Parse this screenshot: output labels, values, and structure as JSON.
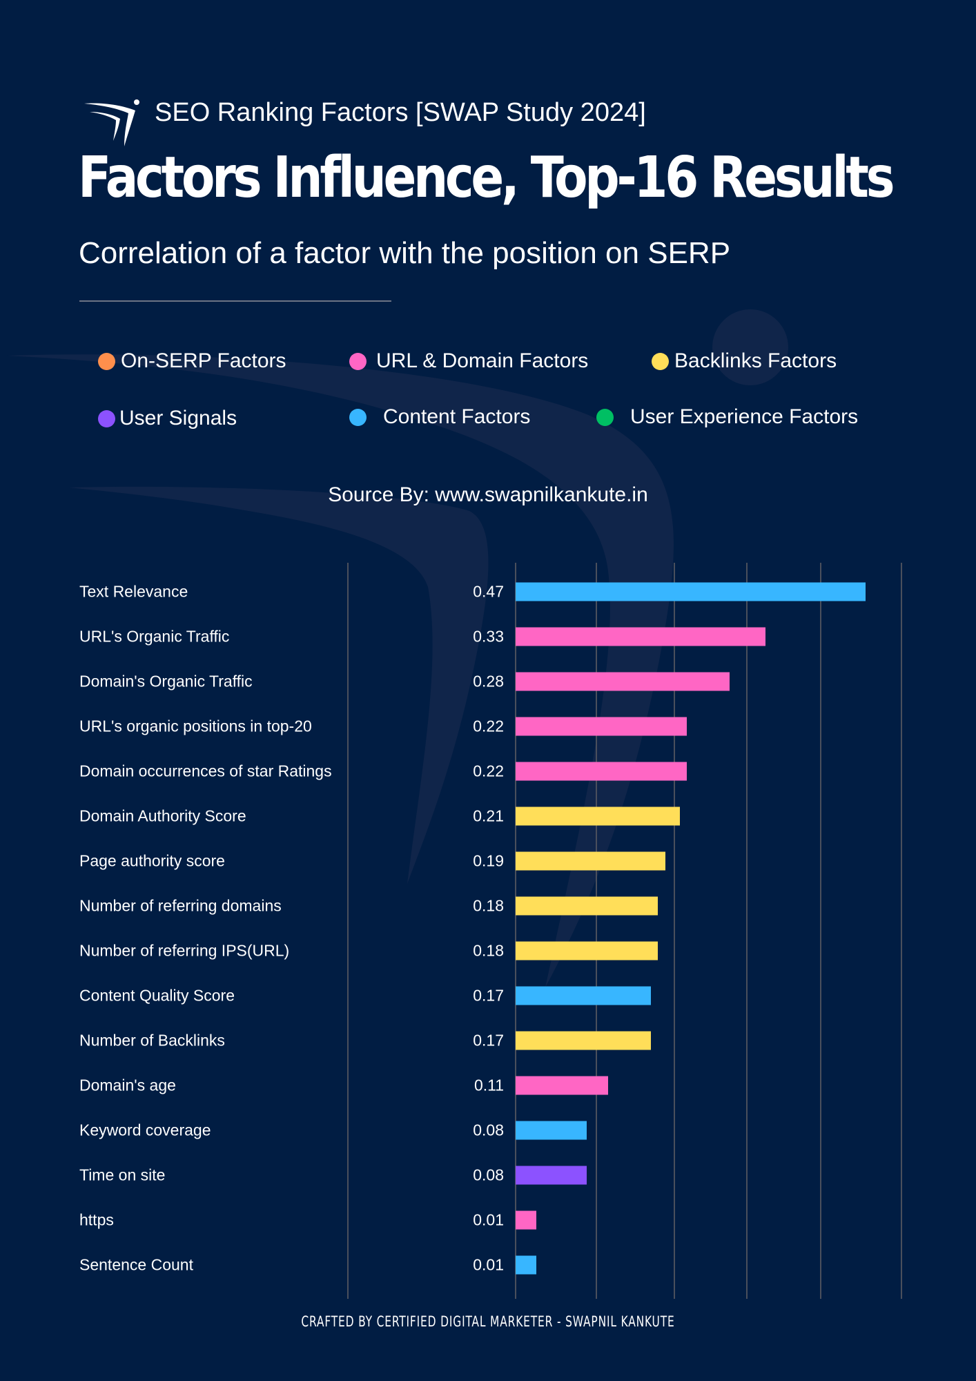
{
  "header": {
    "study_title": "SEO Ranking Factors [SWAP Study 2024]",
    "main_title": "Factors Influence, Top-16 Results",
    "subtitle": "Correlation of a factor with the position on SERP"
  },
  "legend": [
    {
      "label": "On-SERP Factors",
      "color": "#ff8f4c"
    },
    {
      "label": "URL & Domain Factors",
      "color": "#ff66c4"
    },
    {
      "label": "Backlinks Factors",
      "color": "#ffde59"
    },
    {
      "label": "User Signals",
      "color": "#8c52ff"
    },
    {
      "label": "Content Factors",
      "color": "#38b6ff"
    },
    {
      "label": "User Experience Factors",
      "color": "#00bf63"
    }
  ],
  "source": "Source By: www.swapnilkankute.in",
  "footer": "CRAFTED BY CERTIFIED DIGITAL MARKETER - SWAPNIL KANKUTE",
  "chart_data": {
    "type": "bar",
    "orientation": "horizontal",
    "title": "Factors Influence, Top-16 Results",
    "xlabel": "",
    "ylabel": "",
    "grid": true,
    "categories": [
      "Text Relevance",
      "URL's Organic Traffic",
      "Domain's Organic Traffic",
      "URL's organic positions in top-20",
      "Domain occurrences of star Ratings",
      "Domain Authority Score",
      "Page authority score",
      "Number of referring domains",
      "Number of referring IPS(URL)",
      "Content Quality Score",
      "Number of Backlinks",
      "Domain's age",
      "Keyword coverage",
      "Time on site",
      "https",
      "Sentence Count"
    ],
    "values": [
      0.47,
      0.33,
      0.28,
      0.22,
      0.22,
      0.21,
      0.19,
      0.18,
      0.18,
      0.17,
      0.17,
      0.11,
      0.08,
      0.08,
      0.01,
      0.01
    ],
    "value_labels": [
      "0.47",
      "0.33",
      "0.28",
      "0.22",
      "0.22",
      "0.21",
      "0.19",
      "0.18",
      "0.18",
      "0.17",
      "0.17",
      "0.11",
      "0.08",
      "0.08",
      "0.01",
      "0.01"
    ],
    "groups": [
      "Content Factors",
      "URL & Domain Factors",
      "URL & Domain Factors",
      "URL & Domain Factors",
      "URL & Domain Factors",
      "Backlinks Factors",
      "Backlinks Factors",
      "Backlinks Factors",
      "Backlinks Factors",
      "Content Factors",
      "Backlinks Factors",
      "URL & Domain Factors",
      "Content Factors",
      "User Signals",
      "URL & Domain Factors",
      "Content Factors"
    ],
    "colors": [
      "#38b6ff",
      "#ff66c4",
      "#ff66c4",
      "#ff66c4",
      "#ff66c4",
      "#ffde59",
      "#ffde59",
      "#ffde59",
      "#ffde59",
      "#38b6ff",
      "#ffde59",
      "#ff66c4",
      "#38b6ff",
      "#8c52ff",
      "#ff66c4",
      "#38b6ff"
    ],
    "xlim": [
      0,
      0.5
    ],
    "legend_position": "top"
  }
}
